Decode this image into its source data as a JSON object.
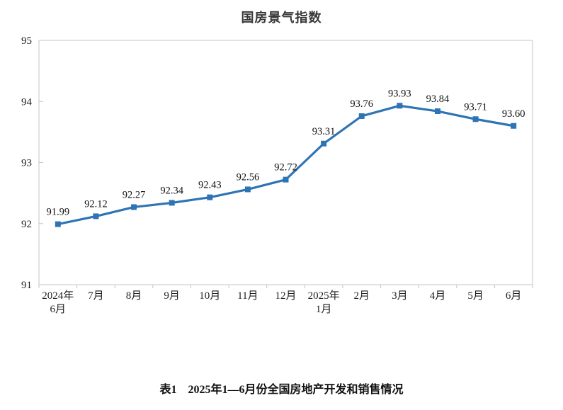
{
  "title": "国房景气指数",
  "caption": "表1　2025年1—6月份全国房地产开发和销售情况",
  "colors": {
    "line": "#2E74B5",
    "frame": "#c6c6c6",
    "axis_text": "#1f1f1f",
    "label_text": "#111111",
    "title_text": "#383838"
  },
  "chart_data": {
    "type": "line",
    "title": "国房景气指数",
    "categories": [
      "2024年\n6月",
      "7月",
      "8月",
      "9月",
      "10月",
      "11月",
      "12月",
      "2025年\n1月",
      "2月",
      "3月",
      "4月",
      "5月",
      "6月"
    ],
    "values": [
      91.99,
      92.12,
      92.27,
      92.34,
      92.43,
      92.56,
      92.72,
      93.31,
      93.76,
      93.93,
      93.84,
      93.71,
      93.6
    ],
    "data_labels": [
      "91.99",
      "92.12",
      "92.27",
      "92.34",
      "92.43",
      "92.56",
      "92.72",
      "93.31",
      "93.76",
      "93.93",
      "93.84",
      "93.71",
      "93.60"
    ],
    "xlabel": "",
    "ylabel": "",
    "ylim": [
      91,
      95
    ],
    "yticks": [
      91,
      92,
      93,
      94,
      95
    ],
    "grid": false,
    "legend": "none",
    "marker": "square"
  }
}
